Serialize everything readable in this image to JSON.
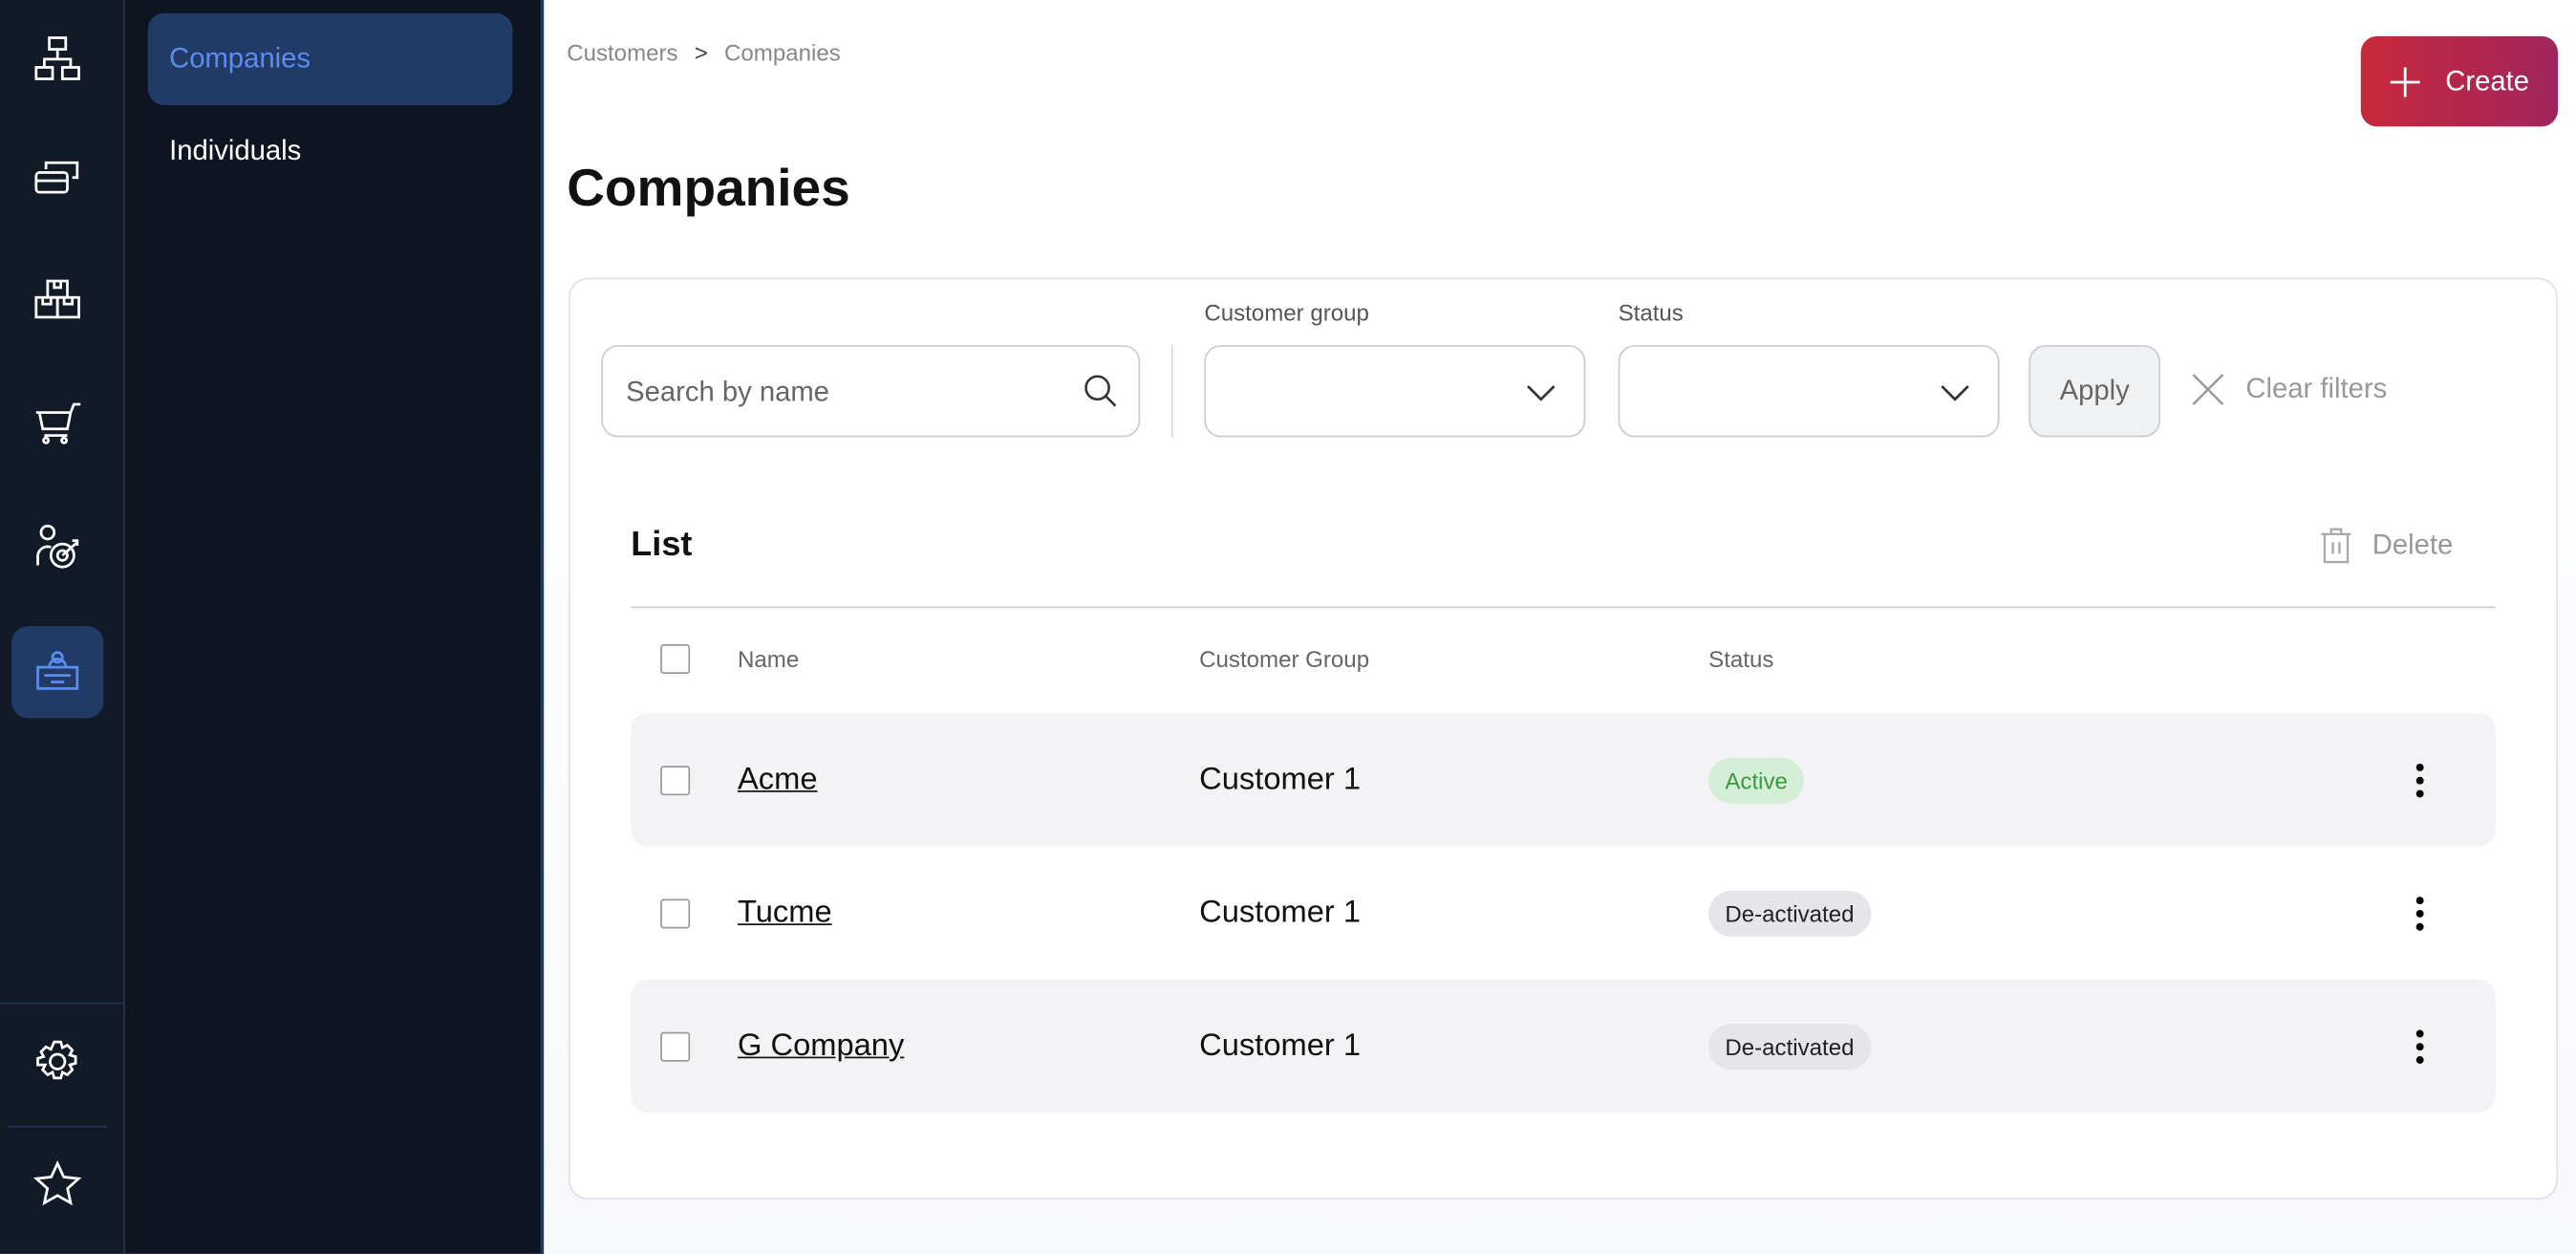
{
  "rail": {
    "items": [
      "hierarchy-icon",
      "cards-icon",
      "boxes-icon",
      "cart-icon",
      "target-user-icon",
      "customer-desk-icon"
    ],
    "active": 5,
    "bottom": [
      "gear-icon",
      "star-icon"
    ]
  },
  "submenu": {
    "items": [
      {
        "label": "Companies",
        "active": true
      },
      {
        "label": "Individuals",
        "active": false
      }
    ]
  },
  "breadcrumb": {
    "items": [
      "Customers",
      "Companies"
    ],
    "separator": ">"
  },
  "page_title": "Companies",
  "create_label": "Create",
  "filters": {
    "search_placeholder": "Search by name",
    "customer_group_label": "Customer group",
    "customer_group_value": "",
    "status_label": "Status",
    "status_value": "",
    "apply_label": "Apply",
    "clear_label": "Clear filters"
  },
  "list": {
    "title": "List",
    "delete_label": "Delete",
    "columns": [
      "Name",
      "Customer Group",
      "Status"
    ],
    "rows": [
      {
        "name": "Acme",
        "group": "Customer 1",
        "status": "Active"
      },
      {
        "name": "Tucme",
        "group": "Customer 1",
        "status": "De-activated"
      },
      {
        "name": "G Company",
        "group": "Customer 1",
        "status": "De-activated"
      }
    ]
  },
  "colors": {
    "accent": "#5b8def",
    "active_bg": "#213a66",
    "create_start": "#c8283a",
    "create_end": "#a0255e",
    "active_badge_bg": "#d5eed8",
    "active_badge_text": "#3a9a3f",
    "inactive_badge_bg": "#e6e6ea"
  }
}
